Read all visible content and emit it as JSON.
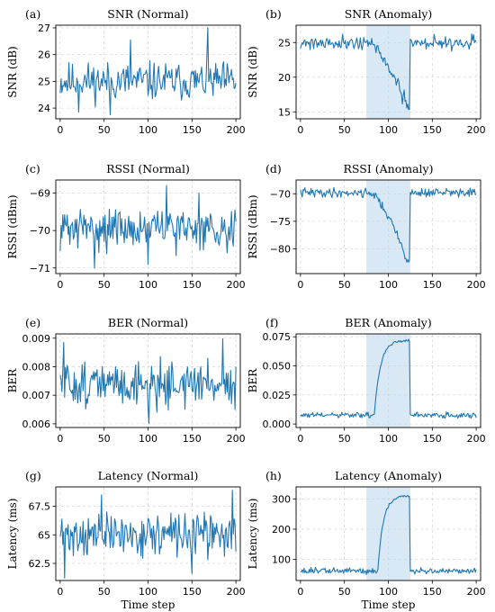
{
  "chart_data": [
    {
      "panel": "(a)",
      "type": "line",
      "title": "SNR (Normal)",
      "xlabel": "",
      "ylabel": "SNR (dB)",
      "xlim": [
        -5,
        205
      ],
      "ylim": [
        23.6,
        27.1
      ],
      "xticks": [
        0,
        50,
        100,
        150,
        200
      ],
      "yticks": [
        24,
        25,
        26,
        27
      ],
      "series": [
        {
          "gen": {
            "mode": "normal",
            "base": 25.0,
            "amp": 0.5,
            "seed": 11,
            "spikes": [
              [
                168,
                27.0
              ],
              [
                21,
                23.85
              ],
              [
                57,
                23.75
              ],
              [
                80,
                26.55
              ]
            ]
          }
        }
      ]
    },
    {
      "panel": "(b)",
      "type": "line",
      "title": "SNR (Anomaly)",
      "xlabel": "",
      "ylabel": "SNR (dB)",
      "xlim": [
        -5,
        205
      ],
      "ylim": [
        14.0,
        27.5
      ],
      "xticks": [
        0,
        50,
        100,
        150,
        200
      ],
      "yticks": [
        15,
        20,
        25
      ],
      "shade": [
        75,
        125
      ],
      "series": [
        {
          "gen": {
            "mode": "ramp_down",
            "base": 25.0,
            "amp": 0.7,
            "seed": 21,
            "start": 78,
            "end": 124,
            "target": 15.0
          }
        }
      ]
    },
    {
      "panel": "(c)",
      "type": "line",
      "title": "RSSI (Normal)",
      "xlabel": "",
      "ylabel": "RSSI (dBm)",
      "xlim": [
        -5,
        205
      ],
      "ylim": [
        -71.15,
        -68.65
      ],
      "xticks": [
        0,
        50,
        100,
        150,
        200
      ],
      "yticks": [
        -71,
        -70,
        -69
      ],
      "series": [
        {
          "gen": {
            "mode": "normal",
            "base": -69.95,
            "amp": 0.38,
            "seed": 31,
            "spikes": [
              [
                121,
                -68.8
              ],
              [
                39,
                -71.0
              ],
              [
                158,
                -69.0
              ],
              [
                100,
                -70.9
              ]
            ]
          }
        }
      ]
    },
    {
      "panel": "(d)",
      "type": "line",
      "title": "RSSI (Anomaly)",
      "xlabel": "",
      "ylabel": "RSSI (dBm)",
      "xlim": [
        -5,
        205
      ],
      "ylim": [
        -84.5,
        -67.5
      ],
      "xticks": [
        0,
        50,
        100,
        150,
        200
      ],
      "yticks": [
        -80,
        -75,
        -70
      ],
      "shade": [
        75,
        125
      ],
      "series": [
        {
          "gen": {
            "mode": "ramp_down",
            "base": -69.8,
            "amp": 0.6,
            "seed": 41,
            "start": 80,
            "end": 124,
            "target": -83.0
          }
        }
      ]
    },
    {
      "panel": "(e)",
      "type": "line",
      "title": "BER (Normal)",
      "xlabel": "",
      "ylabel": "BER",
      "xlim": [
        -5,
        205
      ],
      "ylim": [
        0.00587,
        0.00915
      ],
      "xticks": [
        0,
        50,
        100,
        150,
        200
      ],
      "yticks": [
        0.006,
        0.007,
        0.008,
        0.009
      ],
      "series": [
        {
          "gen": {
            "mode": "normal",
            "base": 0.0074,
            "amp": 0.00055,
            "seed": 51,
            "spikes": [
              [
                185,
                0.00898
              ],
              [
                101,
                0.00602
              ],
              [
                4,
                0.00885
              ],
              [
                199,
                0.0065
              ]
            ]
          }
        }
      ]
    },
    {
      "panel": "(f)",
      "type": "line",
      "title": "BER (Anomaly)",
      "xlabel": "",
      "ylabel": "BER",
      "xlim": [
        -5,
        205
      ],
      "ylim": [
        -0.003,
        0.0775
      ],
      "xticks": [
        0,
        50,
        100,
        150,
        200
      ],
      "yticks": [
        0.0,
        0.025,
        0.05,
        0.075
      ],
      "shade": [
        75,
        125
      ],
      "series": [
        {
          "gen": {
            "mode": "rise",
            "base": 0.0075,
            "amp": 0.0018,
            "seed": 61,
            "start": 84,
            "end": 124,
            "target": 0.072
          }
        }
      ]
    },
    {
      "panel": "(g)",
      "type": "line",
      "title": "Latency (Normal)",
      "xlabel": "Time step",
      "ylabel": "Latency (ms)",
      "xlim": [
        -5,
        205
      ],
      "ylim": [
        61.0,
        69.2
      ],
      "xticks": [
        0,
        50,
        100,
        150,
        200
      ],
      "yticks": [
        62.5,
        65.0,
        67.5
      ],
      "series": [
        {
          "gen": {
            "mode": "normal",
            "base": 65.0,
            "amp": 1.3,
            "seed": 71,
            "spikes": [
              [
                196,
                68.9
              ],
              [
                5,
                61.2
              ],
              [
                47,
                68.5
              ],
              [
                150,
                61.6
              ]
            ]
          }
        }
      ]
    },
    {
      "panel": "(h)",
      "type": "line",
      "title": "Latency (Anomaly)",
      "xlabel": "Time step",
      "ylabel": "Latency (ms)",
      "xlim": [
        -5,
        205
      ],
      "ylim": [
        30,
        340
      ],
      "xticks": [
        0,
        50,
        100,
        150,
        200
      ],
      "yticks": [
        100,
        200,
        300
      ],
      "shade": [
        75,
        125
      ],
      "series": [
        {
          "gen": {
            "mode": "rise",
            "base": 62.0,
            "amp": 8.0,
            "seed": 81,
            "start": 88,
            "end": 124,
            "target": 310.0
          }
        }
      ]
    }
  ],
  "style": {
    "line_color": "#1f77b4",
    "shade_color": "#d9e8f5"
  }
}
